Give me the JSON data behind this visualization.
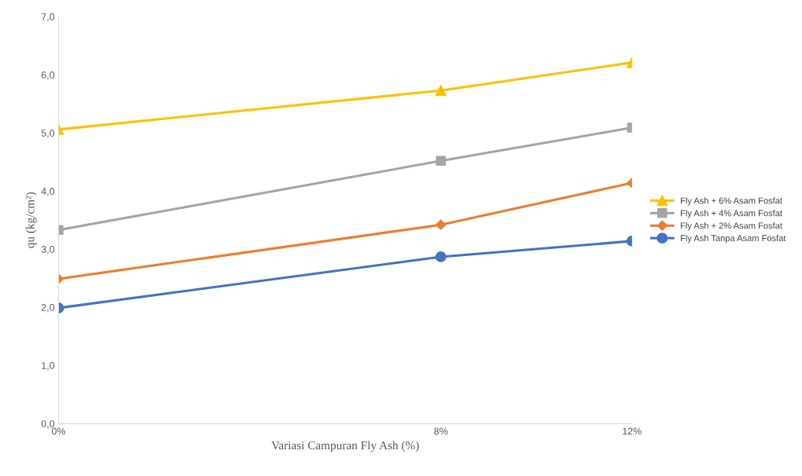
{
  "chart_data": {
    "type": "line",
    "xlabel": "Variasi Campuran Fly Ash (%)",
    "ylabel": "qu (kg/cm²)",
    "x": [
      0,
      8,
      12
    ],
    "xlim": [
      0,
      12
    ],
    "xticks": [
      {
        "value": 0,
        "label": "0%"
      },
      {
        "value": 8,
        "label": "8%"
      },
      {
        "value": 12,
        "label": "12%"
      }
    ],
    "ylim": [
      0,
      7
    ],
    "yticks": [
      {
        "value": 0,
        "label": "0,0"
      },
      {
        "value": 1,
        "label": "1,0"
      },
      {
        "value": 2,
        "label": "2,0"
      },
      {
        "value": 3,
        "label": "3,0"
      },
      {
        "value": 4,
        "label": "4,0"
      },
      {
        "value": 5,
        "label": "5,0"
      },
      {
        "value": 6,
        "label": "6,0"
      },
      {
        "value": 7,
        "label": "7,0"
      }
    ],
    "grid": false,
    "legend": "right",
    "series": [
      {
        "name": "Fly Ash + 6% Asam Fosfat",
        "color": "#ffc000",
        "marker": "triangle",
        "values": [
          5.06,
          5.73,
          6.21
        ]
      },
      {
        "name": "Fly Ash + 4% Asam Fosfat",
        "color": "#a5a5a5",
        "marker": "square",
        "values": [
          3.33,
          4.52,
          5.09
        ]
      },
      {
        "name": "Fly Ash + 2% Asam Fosfat",
        "color": "#ed7d31",
        "marker": "diamond",
        "values": [
          2.49,
          3.42,
          4.14
        ]
      },
      {
        "name": "Fly Ash Tanpa Asam Fosfat",
        "color": "#4472c4",
        "marker": "circle",
        "values": [
          1.99,
          2.87,
          3.14
        ]
      }
    ]
  }
}
